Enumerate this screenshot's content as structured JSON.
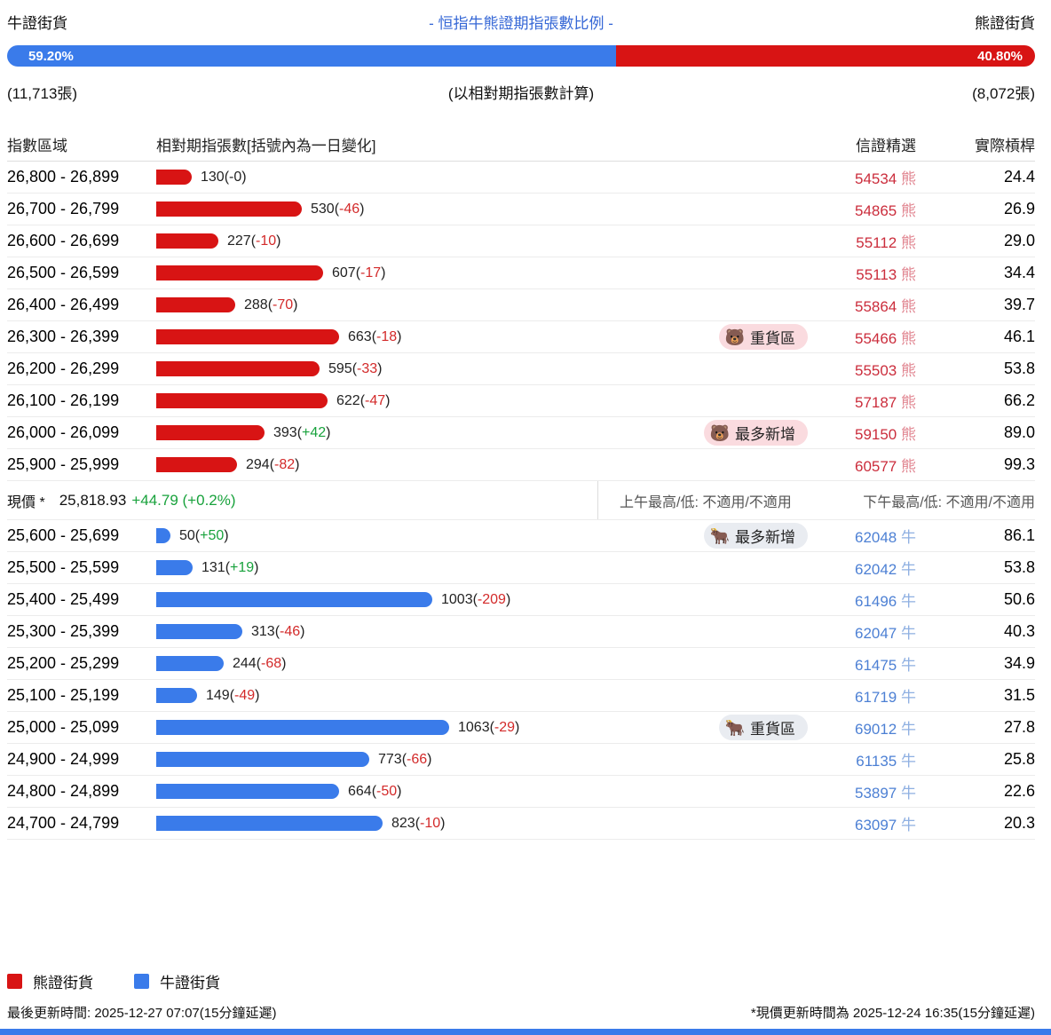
{
  "header": {
    "bull_label": "牛證街貨",
    "title": "- 恒指牛熊證期指張數比例 -",
    "bear_label": "熊證街貨",
    "bull_pct_label": "59.20%",
    "bear_pct_label": "40.80%",
    "bull_pct_value": 59.2,
    "bear_pct_value": 40.8,
    "bull_count": "(11,713張)",
    "center_note": "(以相對期指張數計算)",
    "bear_count": "(8,072張)"
  },
  "table_headers": {
    "range": "指數區域",
    "bar": "相對期指張數[括號內為一日變化]",
    "pick": "信證精選",
    "leverage": "實際槓桿"
  },
  "price_row": {
    "label": "現價 *",
    "price": "25,818.93",
    "change": "+44.79 (+0.2%)",
    "am_high_low": "上午最高/低: 不適用/不適用",
    "pm_high_low": "下午最高/低: 不適用/不適用"
  },
  "legend": {
    "bear": "熊證街貨",
    "bull": "牛證街貨"
  },
  "footer": {
    "last_update": "最後更新時間: 2025-12-27 07:07(15分鐘延遲)",
    "price_update": "*現價更新時間為 2025-12-24 16:35(15分鐘延遲)"
  },
  "colors": {
    "bull_blue": "#3a7bea",
    "bear_red": "#d81414",
    "title_blue": "#3567d6",
    "positive_green": "#18a23c",
    "negative_red": "#d32a2a",
    "bear_badge_bg": "#fadbdf",
    "bull_badge_bg": "#e9ecf1"
  },
  "chart_data": {
    "type": "bar",
    "orientation": "horizontal",
    "title": "- 恒指牛熊證期指張數比例 -",
    "xlabel": "相對期指張數[括號內為一日變化]",
    "ylabel": "指數區域",
    "xlim": [
      0,
      1100
    ],
    "unit": "張",
    "bear_rows": [
      {
        "range": "26,800 - 26,899",
        "value": 130,
        "change": "-0",
        "code": "54534",
        "suffix": "熊",
        "leverage": "24.4",
        "badge": null
      },
      {
        "range": "26,700 - 26,799",
        "value": 530,
        "change": "-46",
        "code": "54865",
        "suffix": "熊",
        "leverage": "26.9",
        "badge": null
      },
      {
        "range": "26,600 - 26,699",
        "value": 227,
        "change": "-10",
        "code": "55112",
        "suffix": "熊",
        "leverage": "29.0",
        "badge": null
      },
      {
        "range": "26,500 - 26,599",
        "value": 607,
        "change": "-17",
        "code": "55113",
        "suffix": "熊",
        "leverage": "34.4",
        "badge": null
      },
      {
        "range": "26,400 - 26,499",
        "value": 288,
        "change": "-70",
        "code": "55864",
        "suffix": "熊",
        "leverage": "39.7",
        "badge": null
      },
      {
        "range": "26,300 - 26,399",
        "value": 663,
        "change": "-18",
        "code": "55466",
        "suffix": "熊",
        "leverage": "46.1",
        "badge": {
          "label": "重貨區",
          "icon": "bear-face-icon",
          "glyph": "🐻"
        }
      },
      {
        "range": "26,200 - 26,299",
        "value": 595,
        "change": "-33",
        "code": "55503",
        "suffix": "熊",
        "leverage": "53.8",
        "badge": null
      },
      {
        "range": "26,100 - 26,199",
        "value": 622,
        "change": "-47",
        "code": "57187",
        "suffix": "熊",
        "leverage": "66.2",
        "badge": null
      },
      {
        "range": "26,000 - 26,099",
        "value": 393,
        "change": "+42",
        "code": "59150",
        "suffix": "熊",
        "leverage": "89.0",
        "badge": {
          "label": "最多新增",
          "icon": "bear-face-icon",
          "glyph": "🐻"
        }
      },
      {
        "range": "25,900 - 25,999",
        "value": 294,
        "change": "-82",
        "code": "60577",
        "suffix": "熊",
        "leverage": "99.3",
        "badge": null
      }
    ],
    "bull_rows": [
      {
        "range": "25,600 - 25,699",
        "value": 50,
        "change": "+50",
        "code": "62048",
        "suffix": "牛",
        "leverage": "86.1",
        "badge": {
          "label": "最多新增",
          "icon": "ox-face-icon",
          "glyph": "🐂"
        }
      },
      {
        "range": "25,500 - 25,599",
        "value": 131,
        "change": "+19",
        "code": "62042",
        "suffix": "牛",
        "leverage": "53.8",
        "badge": null
      },
      {
        "range": "25,400 - 25,499",
        "value": 1003,
        "change": "-209",
        "code": "61496",
        "suffix": "牛",
        "leverage": "50.6",
        "badge": null
      },
      {
        "range": "25,300 - 25,399",
        "value": 313,
        "change": "-46",
        "code": "62047",
        "suffix": "牛",
        "leverage": "40.3",
        "badge": null
      },
      {
        "range": "25,200 - 25,299",
        "value": 244,
        "change": "-68",
        "code": "61475",
        "suffix": "牛",
        "leverage": "34.9",
        "badge": null
      },
      {
        "range": "25,100 - 25,199",
        "value": 149,
        "change": "-49",
        "code": "61719",
        "suffix": "牛",
        "leverage": "31.5",
        "badge": null
      },
      {
        "range": "25,000 - 25,099",
        "value": 1063,
        "change": "-29",
        "code": "69012",
        "suffix": "牛",
        "leverage": "27.8",
        "badge": {
          "label": "重貨區",
          "icon": "ox-face-icon",
          "glyph": "🐂"
        }
      },
      {
        "range": "24,900 - 24,999",
        "value": 773,
        "change": "-66",
        "code": "61135",
        "suffix": "牛",
        "leverage": "25.8",
        "badge": null
      },
      {
        "range": "24,800 - 24,899",
        "value": 664,
        "change": "-50",
        "code": "53897",
        "suffix": "牛",
        "leverage": "22.6",
        "badge": null
      },
      {
        "range": "24,700 - 24,799",
        "value": 823,
        "change": "-10",
        "code": "63097",
        "suffix": "牛",
        "leverage": "20.3",
        "badge": null
      }
    ]
  }
}
